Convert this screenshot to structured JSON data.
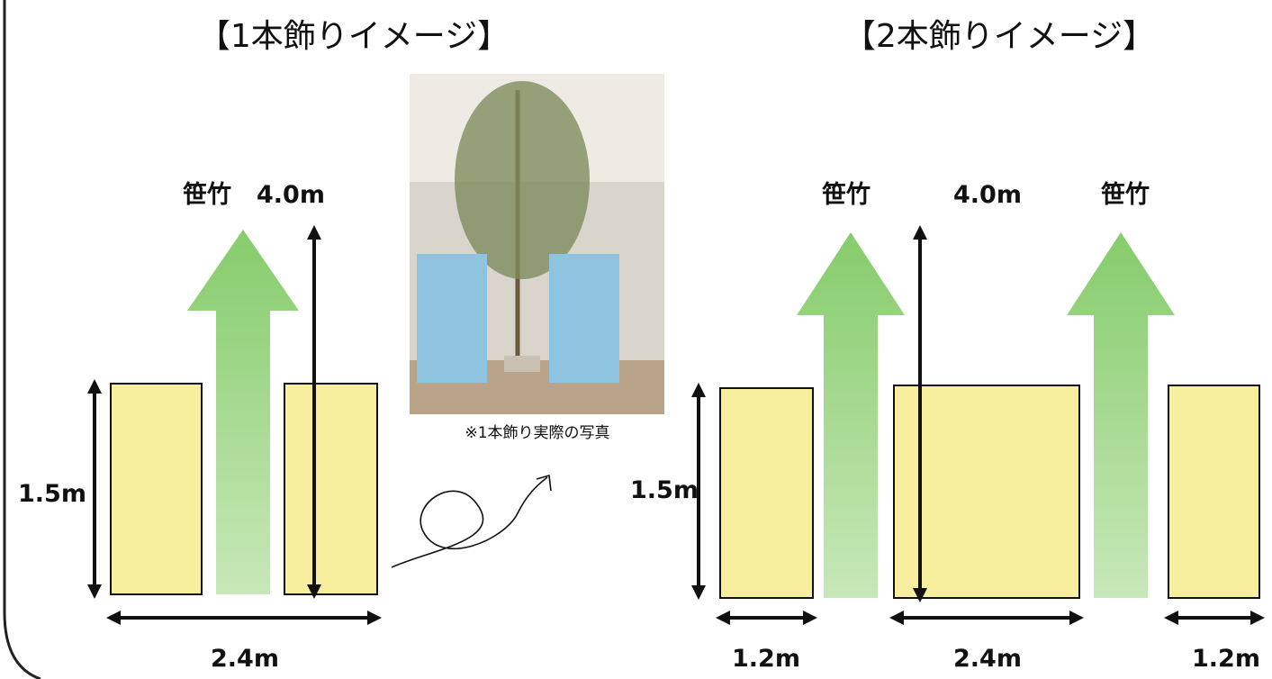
{
  "left": {
    "title": "【1本飾りイメージ】",
    "bamboo_label": "笹竹",
    "height_label": "4.0m",
    "side_height_label": "1.5m",
    "width_label": "2.4m"
  },
  "photo": {
    "caption": "※1本飾り実際の写真"
  },
  "right": {
    "title": "【2本飾りイメージ】",
    "bamboo_label_1": "笹竹",
    "height_label": "4.0m",
    "bamboo_label_2": "笹竹",
    "side_height_label": "1.5m",
    "width_label_1": "1.2m",
    "width_label_2": "2.4m",
    "width_label_3": "1.2m"
  }
}
